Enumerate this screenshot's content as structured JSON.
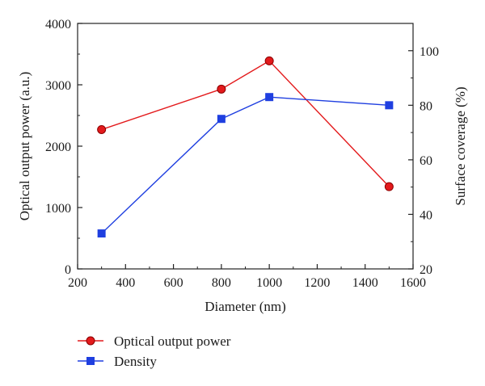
{
  "chart_data": {
    "type": "line",
    "x": [
      300,
      800,
      1000,
      1500
    ],
    "xlabel": "Diameter (nm)",
    "xlim": [
      200,
      1600
    ],
    "xticks": [
      200,
      400,
      600,
      800,
      1000,
      1200,
      1400,
      1600
    ],
    "ylabel_left": "Optical output power (a.u.)",
    "ylim_left": [
      0,
      4000
    ],
    "yticks_left": [
      0,
      1000,
      2000,
      3000,
      4000
    ],
    "ylabel_right": "Surface coverage (%)",
    "ylim_right": [
      20,
      110
    ],
    "yticks_right": [
      20,
      40,
      60,
      80,
      100
    ],
    "grid": false,
    "legend_position": "bottom-left, below plot",
    "series": [
      {
        "name": "Optical output power",
        "axis": "left",
        "marker": "circle",
        "color": "#e31a1c",
        "values": [
          2270,
          2930,
          3390,
          1340
        ]
      },
      {
        "name": "Density",
        "axis": "right",
        "marker": "square",
        "color": "#1f3fe0",
        "values": [
          33,
          75,
          83,
          80
        ]
      }
    ]
  }
}
